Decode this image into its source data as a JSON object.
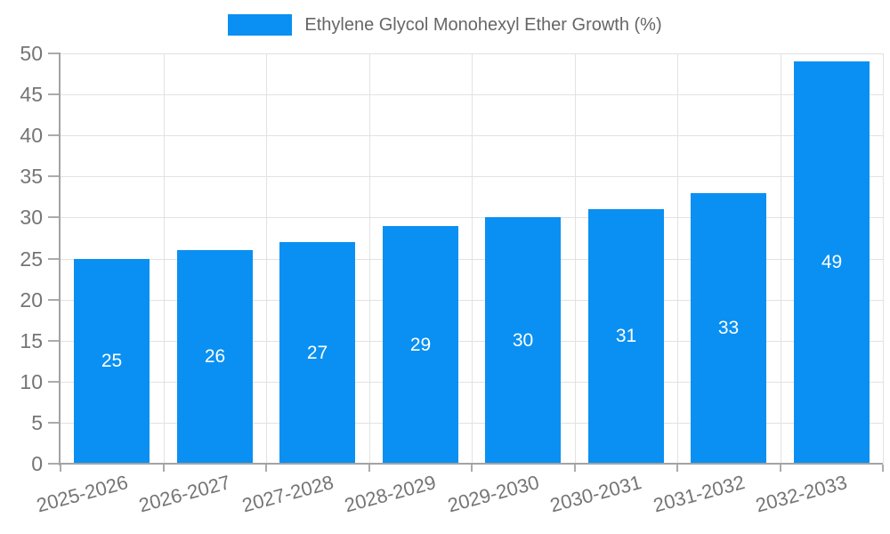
{
  "chart_data": {
    "type": "bar",
    "title": "Ethylene Glycol Monohexyl Ether Growth (%)",
    "categories": [
      "2025-2026",
      "2026-2027",
      "2027-2028",
      "2028-2029",
      "2029-2030",
      "2030-2031",
      "2031-2032",
      "2032-2033"
    ],
    "series": [
      {
        "name": "Ethylene Glycol Monohexyl Ether Growth (%)",
        "values": [
          25,
          26,
          27,
          29,
          30,
          31,
          33,
          49
        ]
      }
    ],
    "xlabel": "",
    "ylabel": "",
    "ylim": [
      0,
      50
    ],
    "yticks": [
      0,
      5,
      10,
      15,
      20,
      25,
      30,
      35,
      40,
      45,
      50
    ],
    "grid": true,
    "legend_position": "top",
    "bar_value_labels_shown": true
  },
  "colors": {
    "bar": "#0a90f2",
    "axis": "#a3a3a3",
    "tick": "#ababab",
    "grid": "#e2e2e2",
    "tick_text": "#757575",
    "legend_text": "#666666",
    "value_text": "#ffffff",
    "background": "#ffffff"
  }
}
